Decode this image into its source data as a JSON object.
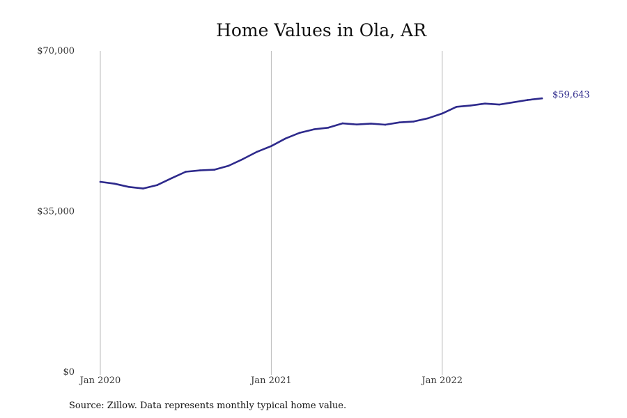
{
  "chart_data": {
    "type": "line",
    "title": "Home Values in Ola, AR",
    "xlabel": "",
    "ylabel": "",
    "ylim": [
      0,
      70000
    ],
    "y_ticks": [
      {
        "value": 0,
        "label": "$0"
      },
      {
        "value": 35000,
        "label": "$35,000"
      },
      {
        "value": 70000,
        "label": "$70,000"
      }
    ],
    "x_ticks": [
      {
        "index": 0,
        "label": "Jan 2020"
      },
      {
        "index": 12,
        "label": "Jan 2021"
      },
      {
        "index": 24,
        "label": "Jan 2022"
      }
    ],
    "x_range": [
      0,
      35
    ],
    "grid": "vertical",
    "series": [
      {
        "color": "#2e2a8c",
        "x": [
          "2020-01",
          "2020-02",
          "2020-03",
          "2020-04",
          "2020-05",
          "2020-06",
          "2020-07",
          "2020-08",
          "2020-09",
          "2020-10",
          "2020-11",
          "2020-12",
          "2021-01",
          "2021-02",
          "2021-03",
          "2021-04",
          "2021-05",
          "2021-06",
          "2021-07",
          "2021-08",
          "2021-09",
          "2021-10",
          "2021-11",
          "2021-12",
          "2022-01",
          "2022-02",
          "2022-03",
          "2022-04",
          "2022-05",
          "2022-06",
          "2022-07",
          "2022-08"
        ],
        "values": [
          41450,
          41050,
          40350,
          40000,
          40750,
          42250,
          43650,
          43950,
          44100,
          44950,
          46400,
          48000,
          49250,
          50900,
          52150,
          52900,
          53250,
          54200,
          53950,
          54150,
          53900,
          54400,
          54600,
          55300,
          56350,
          57800,
          58100,
          58500,
          58300,
          58800,
          59300,
          59643
        ]
      }
    ],
    "end_label": "$59,643"
  },
  "footer": {
    "source": "Source: Zillow. Data represents monthly typical home value."
  }
}
